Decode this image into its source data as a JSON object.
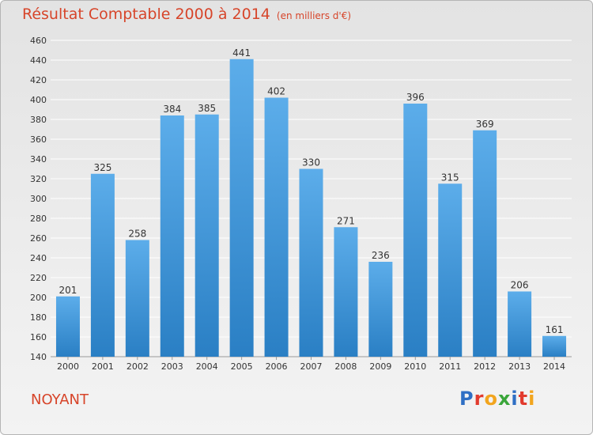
{
  "title": {
    "main": "Résultat Comptable 2000 à 2014",
    "sub": "(en milliers d'€)"
  },
  "place": "NOYANT",
  "logo": {
    "text": "Proxiti",
    "letter_colors": [
      "#2f6fc4",
      "#e23b2e",
      "#f2a51e",
      "#3aa63a",
      "#2f6fc4",
      "#e23b2e",
      "#f2a51e"
    ]
  },
  "colors": {
    "bar_top": "#5cadea",
    "bar_bottom": "#2a7fc4",
    "grid": "#ffffff",
    "text": "#333333",
    "accent": "#d7452a"
  },
  "chart_data": {
    "type": "bar",
    "title": "Résultat Comptable 2000 à 2014",
    "subtitle": "(en milliers d'€)",
    "categories": [
      "2000",
      "2001",
      "2002",
      "2003",
      "2004",
      "2005",
      "2006",
      "2007",
      "2008",
      "2009",
      "2010",
      "2011",
      "2012",
      "2013",
      "2014"
    ],
    "values": [
      201,
      325,
      258,
      384,
      385,
      441,
      402,
      330,
      271,
      236,
      396,
      315,
      369,
      206,
      161
    ],
    "ylim": [
      140,
      460
    ],
    "yticks": [
      140,
      160,
      180,
      200,
      220,
      240,
      260,
      280,
      300,
      320,
      340,
      360,
      380,
      400,
      420,
      440,
      460
    ],
    "grid": true,
    "data_labels": true
  }
}
